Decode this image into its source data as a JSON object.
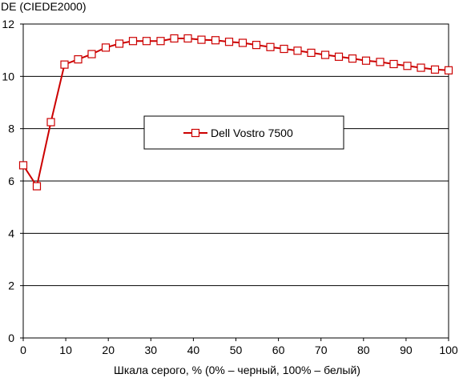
{
  "chart_data": {
    "type": "line",
    "title": "",
    "ylabel": "DE (CIEDE2000)",
    "xlabel": "Шкала серого, % (0% – черный, 100% – белый)",
    "xlim": [
      0,
      100
    ],
    "ylim": [
      0,
      12
    ],
    "x_ticks": [
      0,
      10,
      20,
      30,
      40,
      50,
      60,
      70,
      80,
      90,
      100
    ],
    "y_ticks": [
      0,
      2,
      4,
      6,
      8,
      10,
      12
    ],
    "grid": "horizontal",
    "legend_position": "center",
    "series": [
      {
        "name": "Dell Vostro 7500",
        "color": "#cc0000",
        "marker": "square-open",
        "x": [
          0,
          3.2,
          6.5,
          9.7,
          12.9,
          16.1,
          19.4,
          22.6,
          25.8,
          29.0,
          32.3,
          35.5,
          38.7,
          41.9,
          45.2,
          48.4,
          51.6,
          54.8,
          58.1,
          61.3,
          64.5,
          67.7,
          71.0,
          74.2,
          77.4,
          80.6,
          83.9,
          87.1,
          90.3,
          93.5,
          96.8,
          100
        ],
        "y": [
          6.6,
          5.8,
          8.25,
          10.45,
          10.65,
          10.85,
          11.1,
          11.25,
          11.35,
          11.35,
          11.35,
          11.45,
          11.45,
          11.4,
          11.38,
          11.32,
          11.28,
          11.2,
          11.12,
          11.05,
          10.98,
          10.9,
          10.82,
          10.75,
          10.68,
          10.6,
          10.55,
          10.47,
          10.4,
          10.33,
          10.26,
          10.23
        ]
      }
    ]
  }
}
